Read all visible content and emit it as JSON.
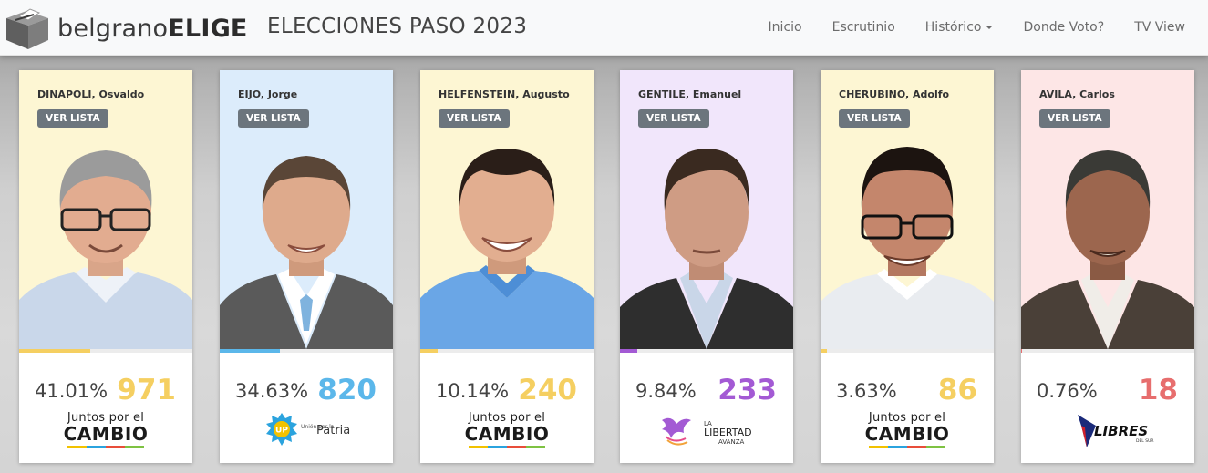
{
  "app": {
    "brand_light": "belgrano",
    "brand_bold": "ELIGE",
    "page_title": "ELECCIONES PASO 2023"
  },
  "nav": {
    "items": [
      {
        "label": "Inicio"
      },
      {
        "label": "Escrutinio"
      },
      {
        "label": "Histórico",
        "dropdown": true
      },
      {
        "label": "Donde Voto?"
      },
      {
        "label": "TV View"
      }
    ]
  },
  "candidates": [
    {
      "name": "DINAPOLI, Osvaldo",
      "button_label": "VER LISTA",
      "percent_label": "41.01%",
      "percent": 41.01,
      "votes": "971",
      "party": "Juntos por el CAMBIO",
      "party_line1": "Juntos por el",
      "party_line2": "CAMBIO",
      "bg_color": "#fdf6d3",
      "accent_color": "#f5cf61"
    },
    {
      "name": "EIJO, Jorge",
      "button_label": "VER LISTA",
      "percent_label": "34.63%",
      "percent": 34.63,
      "votes": "820",
      "party": "Unión por la Patria",
      "party_small": "Unión por la",
      "party_main": "Patria",
      "bg_color": "#dcecfb",
      "accent_color": "#5bb7ea"
    },
    {
      "name": "HELFENSTEIN, Augusto",
      "button_label": "VER LISTA",
      "percent_label": "10.14%",
      "percent": 10.14,
      "votes": "240",
      "party": "Juntos por el CAMBIO",
      "party_line1": "Juntos por el",
      "party_line2": "CAMBIO",
      "bg_color": "#fdf6d3",
      "accent_color": "#f5cf61"
    },
    {
      "name": "GENTILE, Emanuel",
      "button_label": "VER LISTA",
      "percent_label": "9.84%",
      "percent": 9.84,
      "votes": "233",
      "party": "La Libertad Avanza",
      "party_small": "LA",
      "party_main": "LIBERTAD",
      "party_sub": "AVANZA",
      "bg_color": "#f1e6fb",
      "accent_color": "#a35ad4"
    },
    {
      "name": "CHERUBINO, Adolfo",
      "button_label": "VER LISTA",
      "percent_label": "3.63%",
      "percent": 3.63,
      "votes": "86",
      "party": "Juntos por el CAMBIO",
      "party_line1": "Juntos por el",
      "party_line2": "CAMBIO",
      "bg_color": "#fdf6d3",
      "accent_color": "#f5cf61"
    },
    {
      "name": "AVILA, Carlos",
      "button_label": "VER LISTA",
      "percent_label": "0.76%",
      "percent": 0.76,
      "votes": "18",
      "party": "Libres del Sur",
      "party_main": "LIBRES",
      "party_sub": "DEL SUR",
      "bg_color": "#fde6e6",
      "accent_color": "#e76e6e"
    }
  ],
  "icons": {
    "brand": "ballot-box-icon",
    "nav_dropdown": "caret-down-icon",
    "photo": "candidate-portrait-icon"
  }
}
